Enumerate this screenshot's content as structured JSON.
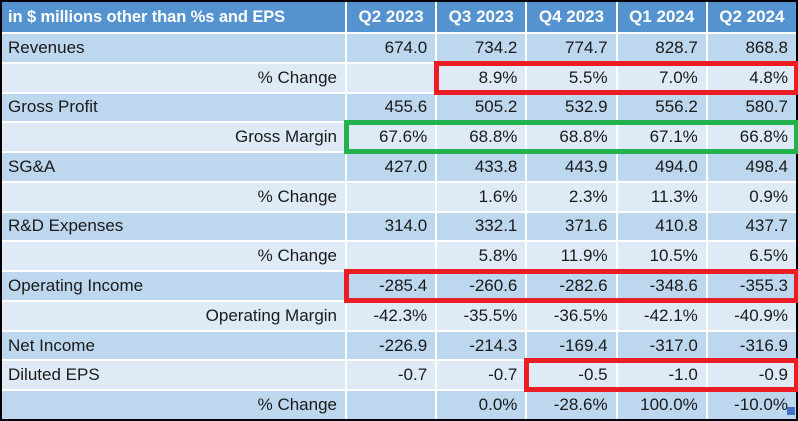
{
  "table": {
    "title": "in $ millions other than %s and EPS",
    "columns": [
      "Q2 2023",
      "Q3 2023",
      "Q4 2023",
      "Q1 2024",
      "Q2 2024"
    ],
    "rows": [
      {
        "label": "Revenues",
        "sub": false,
        "values": [
          "674.0",
          "734.2",
          "774.7",
          "828.7",
          "868.8"
        ]
      },
      {
        "label": "% Change",
        "sub": true,
        "values": [
          "",
          "8.9%",
          "5.5%",
          "7.0%",
          "4.8%"
        ],
        "box": {
          "color": "red",
          "from": 1,
          "to": 4
        }
      },
      {
        "label": "Gross Profit",
        "sub": false,
        "values": [
          "455.6",
          "505.2",
          "532.9",
          "556.2",
          "580.7"
        ]
      },
      {
        "label": "Gross Margin",
        "sub": true,
        "values": [
          "67.6%",
          "68.8%",
          "68.8%",
          "67.1%",
          "66.8%"
        ],
        "box": {
          "color": "green",
          "from": 0,
          "to": 4
        }
      },
      {
        "label": "SG&A",
        "sub": false,
        "values": [
          "427.0",
          "433.8",
          "443.9",
          "494.0",
          "498.4"
        ]
      },
      {
        "label": "% Change",
        "sub": true,
        "values": [
          "",
          "1.6%",
          "2.3%",
          "11.3%",
          "0.9%"
        ]
      },
      {
        "label": "R&D Expenses",
        "sub": false,
        "values": [
          "314.0",
          "332.1",
          "371.6",
          "410.8",
          "437.7"
        ]
      },
      {
        "label": "% Change",
        "sub": true,
        "values": [
          "",
          "5.8%",
          "11.9%",
          "10.5%",
          "6.5%"
        ]
      },
      {
        "label": "Operating Income",
        "sub": false,
        "values": [
          "-285.4",
          "-260.6",
          "-282.6",
          "-348.6",
          "-355.3"
        ],
        "box": {
          "color": "red",
          "from": 0,
          "to": 4
        }
      },
      {
        "label": "Operating Margin",
        "sub": true,
        "values": [
          "-42.3%",
          "-35.5%",
          "-36.5%",
          "-42.1%",
          "-40.9%"
        ]
      },
      {
        "label": "Net Income",
        "sub": false,
        "values": [
          "-226.9",
          "-214.3",
          "-169.4",
          "-317.0",
          "-316.9"
        ]
      },
      {
        "label": "Diluted EPS",
        "sub": false,
        "values": [
          "-0.7",
          "-0.7",
          "-0.5",
          "-1.0",
          "-0.9"
        ],
        "box": {
          "color": "red",
          "from": 2,
          "to": 4
        }
      },
      {
        "label": "% Change",
        "sub": true,
        "values": [
          "",
          "0.0%",
          "-28.6%",
          "100.0%",
          "-10.0%"
        ]
      }
    ]
  },
  "colors": {
    "header_bg": "#5492D0",
    "row_dark": "#BDD7EE",
    "row_light": "#DEEBF7",
    "text": "#1A1A1A",
    "header_text": "#FFFFFF",
    "frame": "#000000",
    "box_red": "#EC1C24",
    "box_green": "#22B14C",
    "handle_blue": "#4472C4"
  },
  "chart_data": {
    "type": "table",
    "title": "in $ millions other than %s and EPS",
    "columns": [
      "Q2 2023",
      "Q3 2023",
      "Q4 2023",
      "Q1 2024",
      "Q2 2024"
    ],
    "rows": [
      {
        "label": "Revenues",
        "unit": "$M",
        "values": [
          674.0,
          734.2,
          774.7,
          828.7,
          868.8
        ]
      },
      {
        "label": "% Change",
        "unit": "%",
        "values": [
          null,
          8.9,
          5.5,
          7.0,
          4.8
        ]
      },
      {
        "label": "Gross Profit",
        "unit": "$M",
        "values": [
          455.6,
          505.2,
          532.9,
          556.2,
          580.7
        ]
      },
      {
        "label": "Gross Margin",
        "unit": "%",
        "values": [
          67.6,
          68.8,
          68.8,
          67.1,
          66.8
        ]
      },
      {
        "label": "SG&A",
        "unit": "$M",
        "values": [
          427.0,
          433.8,
          443.9,
          494.0,
          498.4
        ]
      },
      {
        "label": "% Change",
        "unit": "%",
        "values": [
          null,
          1.6,
          2.3,
          11.3,
          0.9
        ]
      },
      {
        "label": "R&D Expenses",
        "unit": "$M",
        "values": [
          314.0,
          332.1,
          371.6,
          410.8,
          437.7
        ]
      },
      {
        "label": "% Change",
        "unit": "%",
        "values": [
          null,
          5.8,
          11.9,
          10.5,
          6.5
        ]
      },
      {
        "label": "Operating Income",
        "unit": "$M",
        "values": [
          -285.4,
          -260.6,
          -282.6,
          -348.6,
          -355.3
        ]
      },
      {
        "label": "Operating Margin",
        "unit": "%",
        "values": [
          -42.3,
          -35.5,
          -36.5,
          -42.1,
          -40.9
        ]
      },
      {
        "label": "Net Income",
        "unit": "$M",
        "values": [
          -226.9,
          -214.3,
          -169.4,
          -317.0,
          -316.9
        ]
      },
      {
        "label": "Diluted EPS",
        "unit": "$",
        "values": [
          -0.7,
          -0.7,
          -0.5,
          -1.0,
          -0.9
        ]
      },
      {
        "label": "% Change",
        "unit": "%",
        "values": [
          null,
          0.0,
          -28.6,
          100.0,
          -10.0
        ]
      }
    ],
    "annotations": [
      {
        "shape": "box",
        "color": "red",
        "row": "% Change (Revenues)",
        "column_span": [
          "Q3 2023",
          "Q2 2024"
        ]
      },
      {
        "shape": "box",
        "color": "green",
        "row": "Gross Margin",
        "column_span": [
          "Q2 2023",
          "Q2 2024"
        ]
      },
      {
        "shape": "box",
        "color": "red",
        "row": "Operating Income",
        "column_span": [
          "Q2 2023",
          "Q2 2024"
        ]
      },
      {
        "shape": "box",
        "color": "red",
        "row": "Diluted EPS",
        "column_span": [
          "Q4 2023",
          "Q2 2024"
        ]
      }
    ]
  }
}
